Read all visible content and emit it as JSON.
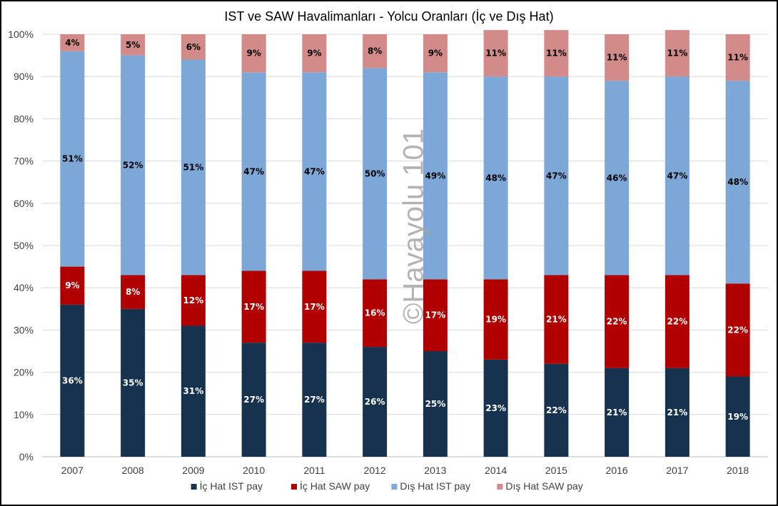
{
  "chart_data": {
    "type": "bar",
    "stacked": true,
    "title": "IST ve SAW Havalimanları - Yolcu Oranları (İç ve Dış Hat)",
    "xlabel": "",
    "ylabel": "",
    "ylim": [
      0,
      100
    ],
    "y_ticks": [
      "0%",
      "10%",
      "20%",
      "30%",
      "40%",
      "50%",
      "60%",
      "70%",
      "80%",
      "90%",
      "100%"
    ],
    "categories": [
      "2007",
      "2008",
      "2009",
      "2010",
      "2011",
      "2012",
      "2013",
      "2014",
      "2015",
      "2016",
      "2017",
      "2018"
    ],
    "series": [
      {
        "name": "İç Hat IST pay",
        "color": "#17324f",
        "label_color": "#ffffff",
        "values": [
          36,
          35,
          31,
          27,
          27,
          26,
          25,
          23,
          22,
          21,
          21,
          19
        ]
      },
      {
        "name": "İç Hat SAW pay",
        "color": "#b00000",
        "label_color": "#ffffff",
        "values": [
          9,
          8,
          12,
          17,
          17,
          16,
          17,
          19,
          21,
          22,
          22,
          22
        ]
      },
      {
        "name": "Dış Hat IST pay",
        "color": "#7ca7d7",
        "label_color": "#000000",
        "values": [
          51,
          52,
          51,
          47,
          47,
          50,
          49,
          48,
          47,
          46,
          47,
          48
        ]
      },
      {
        "name": "Dış Hat SAW pay",
        "color": "#d28b89",
        "label_color": "#000000",
        "values": [
          4,
          5,
          6,
          9,
          9,
          8,
          9,
          11,
          11,
          11,
          11,
          11
        ]
      }
    ],
    "grid": true,
    "legend_position": "bottom",
    "watermark": "©Havayolu 101"
  }
}
